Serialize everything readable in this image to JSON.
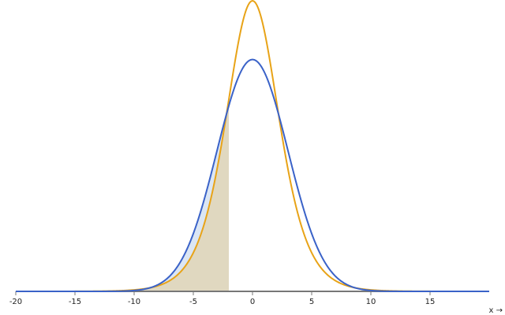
{
  "chart_data": {
    "type": "line",
    "title": "",
    "xlabel": "x →",
    "ylabel": "",
    "xlim": [
      -20,
      20
    ],
    "ylim": [
      0,
      0.1667
    ],
    "x_ticks": [
      -20,
      -15,
      -10,
      -5,
      0,
      5,
      10,
      15
    ],
    "x_tick_labels": [
      "-20",
      "-15",
      "-10",
      "-5",
      "0",
      "5",
      "10",
      "15"
    ],
    "grid": false,
    "series": [
      {
        "distribution": "normal",
        "mean": 0,
        "sd": 3,
        "color": "#3a62c8",
        "fill_color": "#dbe6f4"
      },
      {
        "distribution": "logistic",
        "location": 0,
        "scale": 1.5,
        "color": "#e8a317",
        "fill_color": "#e0d8c0"
      }
    ],
    "shaded_region": {
      "from": -20,
      "to": -2
    },
    "axis_color": "#777777"
  }
}
